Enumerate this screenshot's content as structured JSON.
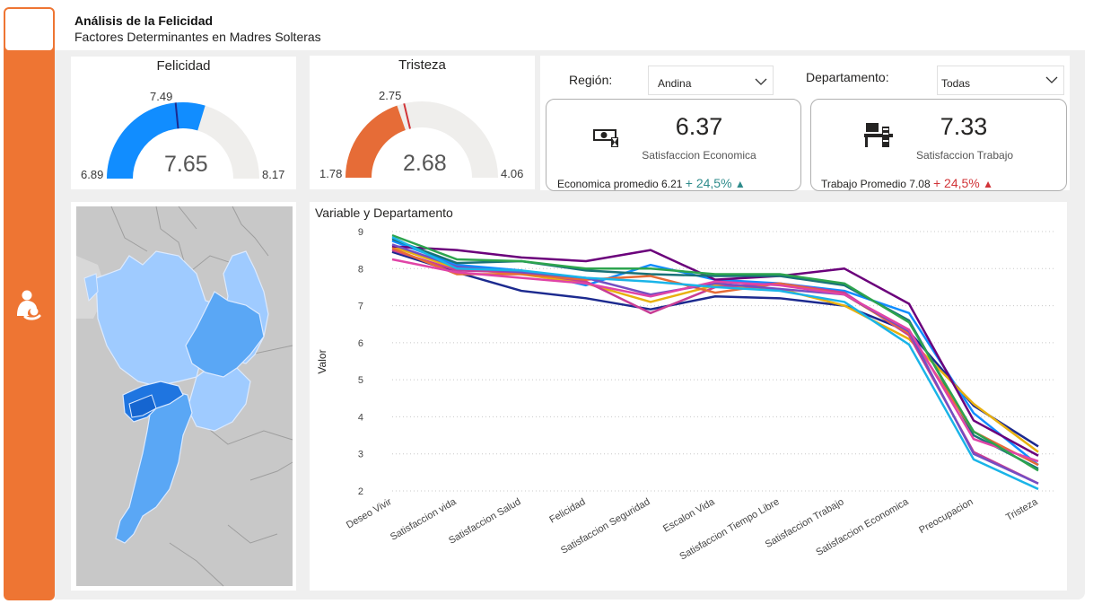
{
  "header": {
    "title": "Análisis de la Felicidad",
    "subtitle": "Factores Determinantes en Madres Solteras"
  },
  "sidebar": {
    "icon": "mother-child-icon"
  },
  "gauges": [
    {
      "title": "Felicidad",
      "value_label": "7.65",
      "min_label": "6.89",
      "max_label": "8.17",
      "target_label": "7.49",
      "value": 7.65,
      "min": 6.89,
      "max": 8.17,
      "target": 7.49,
      "color": "#118dff"
    },
    {
      "title": "Tristeza",
      "value_label": "2.68",
      "min_label": "1.78",
      "max_label": "4.06",
      "target_label": "2.75",
      "value": 2.68,
      "min": 1.78,
      "max": 4.06,
      "target": 2.75,
      "color": "#e66c37"
    }
  ],
  "slicers": {
    "region": {
      "label": "Región:",
      "value": "Andina"
    },
    "departamento": {
      "label": "Departamento:",
      "value": "Todas"
    }
  },
  "kpis": [
    {
      "icon": "money-icon",
      "value": "6.37",
      "label": "Satisfaccion Economica",
      "footer_prefix": "Economica promedio 6.21",
      "footer_delta": "+ 24,5%",
      "trend_icon": "triangle-up-icon",
      "trend_color": "#2e8b8b"
    },
    {
      "icon": "desk-icon",
      "value": "7.33",
      "label": "Satisfaccion Trabajo",
      "footer_prefix": "Trabajo Promedio 7.08",
      "footer_delta": "+ 24,5%",
      "trend_icon": "triangle-up-icon",
      "trend_color": "#d13438"
    }
  ],
  "map": {
    "name": "departments-map"
  },
  "chart_data": {
    "type": "line",
    "title": "Variable y Departamento",
    "ylabel": "Valor",
    "xlabel": "",
    "ylim": [
      2,
      9
    ],
    "yticks": [
      "2",
      "3",
      "4",
      "5",
      "6",
      "7",
      "8",
      "9"
    ],
    "categories": [
      "Deseo Vivir",
      "Satisfaccion vida",
      "Satisfaccion Salud",
      "Felicidad",
      "Satisfaccion Seguridad",
      "Escalon Vida",
      "Satisfaccion Tiempo Libre",
      "Satisfaccion Trabajo",
      "Satisfaccion Economica",
      "Preocupacion",
      "Tristeza"
    ],
    "grid": true,
    "series": [
      {
        "color": "#1c2a8f",
        "values": [
          8.45,
          7.9,
          7.4,
          7.2,
          6.9,
          7.25,
          7.2,
          7.0,
          6.3,
          4.3,
          3.2
        ]
      },
      {
        "color": "#118dff",
        "values": [
          8.75,
          8.1,
          7.95,
          7.55,
          8.1,
          7.7,
          7.6,
          7.4,
          6.8,
          4.1,
          2.7
        ]
      },
      {
        "color": "#e8b00f",
        "values": [
          8.6,
          8.0,
          7.85,
          7.6,
          7.1,
          7.55,
          7.45,
          7.0,
          6.1,
          4.35,
          3.05
        ]
      },
      {
        "color": "#6b007b",
        "values": [
          8.6,
          8.5,
          8.3,
          8.2,
          8.5,
          7.7,
          7.8,
          8.0,
          7.05,
          3.9,
          2.95
        ]
      },
      {
        "color": "#197278",
        "values": [
          8.8,
          8.15,
          8.2,
          7.95,
          7.85,
          7.8,
          7.8,
          7.55,
          6.6,
          3.5,
          2.6
        ]
      },
      {
        "color": "#c83d95",
        "values": [
          8.5,
          7.95,
          7.9,
          7.65,
          6.8,
          7.5,
          7.6,
          7.35,
          6.2,
          3.05,
          2.2
        ]
      },
      {
        "color": "#e66c37",
        "values": [
          8.55,
          7.85,
          7.85,
          7.7,
          7.8,
          7.35,
          7.6,
          7.3,
          6.25,
          3.6,
          2.7
        ]
      },
      {
        "color": "#744ec2",
        "values": [
          8.65,
          8.05,
          7.9,
          7.75,
          7.3,
          7.6,
          7.45,
          7.3,
          6.3,
          3.0,
          2.2
        ]
      },
      {
        "color": "#e044a7",
        "values": [
          8.25,
          7.9,
          7.75,
          7.6,
          7.25,
          7.65,
          7.55,
          7.3,
          6.35,
          3.4,
          2.8
        ]
      },
      {
        "color": "#2da44e",
        "values": [
          8.9,
          8.25,
          8.2,
          8.0,
          8.0,
          7.85,
          7.85,
          7.6,
          6.55,
          3.6,
          2.55
        ]
      },
      {
        "color": "#1ab4e8",
        "values": [
          8.85,
          8.0,
          7.95,
          7.75,
          7.65,
          7.5,
          7.4,
          7.1,
          5.95,
          2.85,
          2.05
        ]
      }
    ]
  }
}
